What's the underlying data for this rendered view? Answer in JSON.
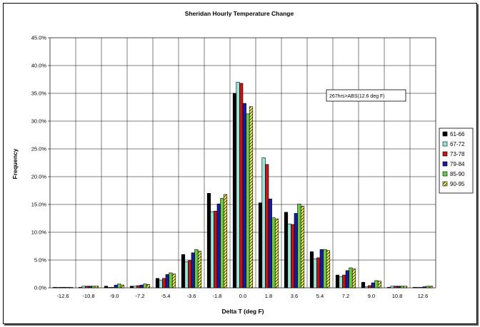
{
  "chart_data": {
    "type": "bar",
    "title": "Sheridan Hourly Temperature Change",
    "xlabel": "Delta T (deg F)",
    "ylabel": "Frequency",
    "ylim": [
      0,
      45
    ],
    "y_ticks": [
      "0.0%",
      "5.0%",
      "10.0%",
      "15.0%",
      "20.0%",
      "25.0%",
      "30.0%",
      "35.0%",
      "40.0%",
      "45.0%"
    ],
    "categories": [
      "-12.6",
      "-10.8",
      "-9.0",
      "-7.2",
      "-5.4",
      "-3.6",
      "-1.8",
      "0.0",
      "1.8",
      "3.6",
      "5.4",
      "7.2",
      "9.0",
      "10.8",
      "12.6"
    ],
    "grid": "vertical and horizontal",
    "legend_position": "right",
    "annotation": "267hrs>ABS(12.6 deg F)",
    "series": [
      {
        "name": "61-66",
        "color": "#000000",
        "pattern": "solid",
        "values": [
          0.1,
          0.1,
          0.3,
          0.3,
          1.7,
          6.0,
          17.0,
          35.0,
          15.3,
          13.6,
          6.5,
          2.3,
          1.0,
          0.1,
          0.1
        ]
      },
      {
        "name": "67-72",
        "color": "#8fe8e0",
        "pattern": "solid",
        "values": [
          0.1,
          0.3,
          0.1,
          0.3,
          1.4,
          4.7,
          13.7,
          37.0,
          23.4,
          11.5,
          5.2,
          2.0,
          0.2,
          0.3,
          0.1
        ]
      },
      {
        "name": "73-78",
        "color": "#c01818",
        "pattern": "solid",
        "values": [
          0.1,
          0.3,
          0.1,
          0.4,
          1.7,
          4.9,
          13.8,
          36.8,
          22.2,
          11.4,
          5.4,
          2.3,
          0.4,
          0.3,
          0.1
        ]
      },
      {
        "name": "79-84",
        "color": "#1a1a9c",
        "pattern": "solid",
        "values": [
          0.1,
          0.3,
          0.5,
          0.5,
          2.4,
          6.3,
          15.1,
          33.2,
          16.0,
          13.4,
          6.9,
          3.1,
          0.9,
          0.3,
          0.2
        ]
      },
      {
        "name": "85-90",
        "color": "#66cc44",
        "pattern": "solid",
        "values": [
          0.1,
          0.3,
          0.7,
          0.7,
          2.7,
          6.9,
          16.1,
          31.3,
          12.6,
          15.1,
          6.9,
          3.6,
          1.3,
          0.3,
          0.3
        ]
      },
      {
        "name": "90-95",
        "color": "#f2f060",
        "pattern": "hatched",
        "values": [
          0.1,
          0.3,
          0.5,
          0.6,
          2.5,
          6.6,
          16.8,
          32.6,
          12.4,
          14.7,
          6.7,
          3.4,
          1.2,
          0.3,
          0.3
        ]
      }
    ]
  }
}
